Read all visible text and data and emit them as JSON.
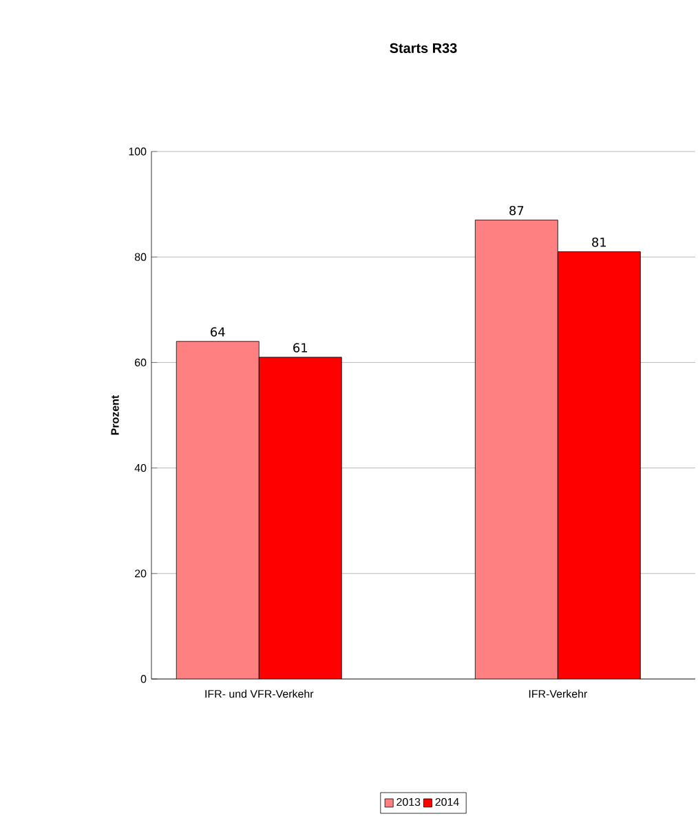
{
  "chart_data": {
    "type": "bar",
    "title": "Starts R33",
    "ylabel": "Prozent",
    "categories": [
      "IFR- und VFR-Verkehr",
      "IFR-Verkehr"
    ],
    "series": [
      {
        "name": "2013",
        "color": "#ff8080",
        "values": [
          64,
          87
        ]
      },
      {
        "name": "2014",
        "color": "#ff0000",
        "values": [
          61,
          81
        ]
      }
    ],
    "ylim": [
      0,
      100
    ],
    "yticks": [
      0,
      20,
      40,
      60,
      80,
      100
    ],
    "grid": "y",
    "legend": "bottom",
    "data_labels": true
  }
}
